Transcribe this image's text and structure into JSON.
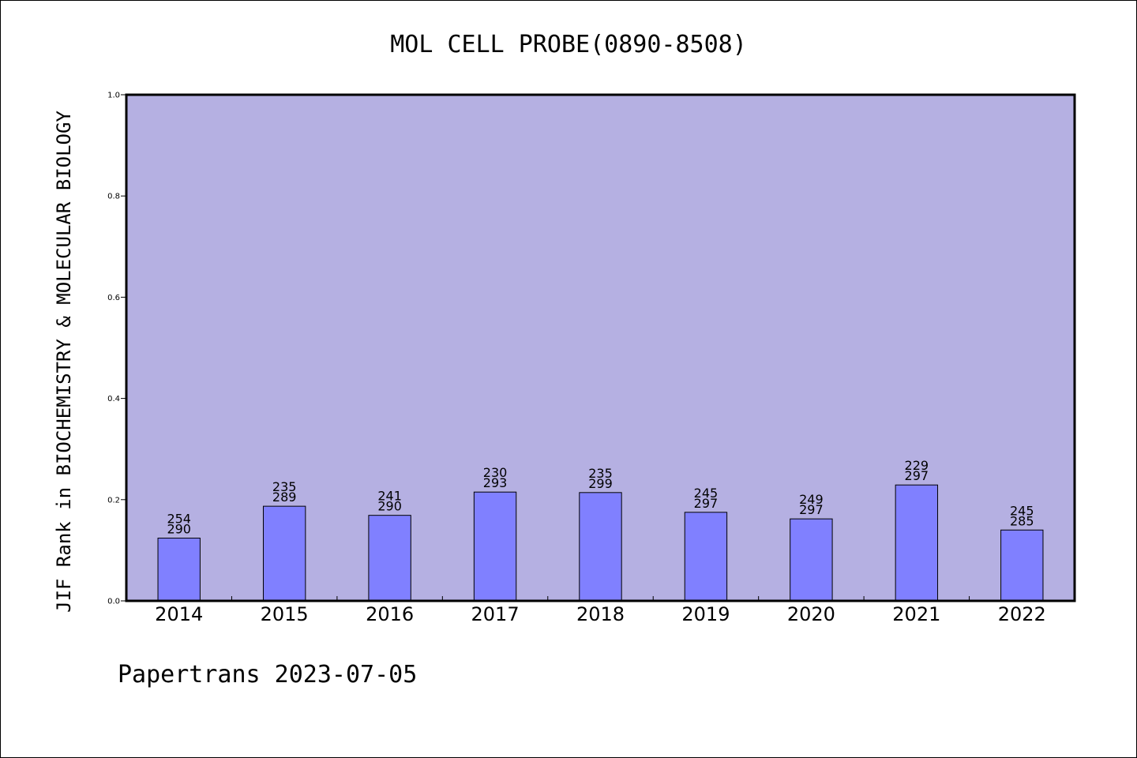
{
  "chart_data": {
    "type": "bar",
    "title": "MOL CELL PROBE(0890-8508)",
    "xlabel": "",
    "ylabel": "JIF Rank in BIOCHEMISTRY & MOLECULAR BIOLOGY",
    "ylim": [
      0.0,
      1.0
    ],
    "yticks": [
      "0.0",
      "0.2",
      "0.4",
      "0.6",
      "0.8",
      "1.0"
    ],
    "grid": false,
    "categories": [
      "2014",
      "2015",
      "2016",
      "2017",
      "2018",
      "2019",
      "2020",
      "2021",
      "2022"
    ],
    "values": [
      0.124,
      0.187,
      0.169,
      0.215,
      0.214,
      0.175,
      0.162,
      0.229,
      0.14
    ],
    "labels": [
      [
        "254",
        "290"
      ],
      [
        "235",
        "289"
      ],
      [
        "241",
        "290"
      ],
      [
        "230",
        "293"
      ],
      [
        "235",
        "299"
      ],
      [
        "245",
        "297"
      ],
      [
        "249",
        "297"
      ],
      [
        "229",
        "297"
      ],
      [
        "245",
        "285"
      ]
    ],
    "colors": {
      "plot_background": "#b5b0e2",
      "bar_fill": "#8080ff",
      "bar_edge": "#000000"
    }
  },
  "footer": "Papertrans 2023-07-05"
}
